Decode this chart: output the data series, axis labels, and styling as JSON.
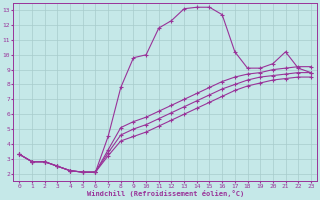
{
  "xlabel": "Windchill (Refroidissement éolien,°C)",
  "xlim": [
    -0.5,
    23.5
  ],
  "ylim": [
    1.5,
    13.5
  ],
  "xticks": [
    0,
    1,
    2,
    3,
    4,
    5,
    6,
    7,
    8,
    9,
    10,
    11,
    12,
    13,
    14,
    15,
    16,
    17,
    18,
    19,
    20,
    21,
    22,
    23
  ],
  "yticks": [
    2,
    3,
    4,
    5,
    6,
    7,
    8,
    9,
    10,
    11,
    12,
    13
  ],
  "background_color": "#c5e8e8",
  "grid_color": "#a8cccc",
  "line_color": "#993399",
  "lines": [
    {
      "x": [
        0,
        1,
        2,
        3,
        4,
        5,
        6,
        7,
        8,
        9,
        10,
        11,
        12,
        13,
        14,
        15,
        16,
        17,
        18,
        19,
        20,
        21,
        22,
        23
      ],
      "y": [
        3.3,
        2.8,
        2.8,
        2.5,
        2.2,
        2.1,
        2.1,
        4.5,
        7.8,
        9.8,
        10.0,
        11.8,
        12.3,
        13.1,
        13.2,
        13.2,
        12.7,
        10.2,
        9.1,
        9.1,
        9.4,
        10.2,
        9.1,
        8.8
      ]
    },
    {
      "x": [
        0,
        1,
        2,
        3,
        4,
        5,
        6,
        7,
        8,
        9,
        10,
        11,
        12,
        13,
        14,
        15,
        16,
        17,
        18,
        19,
        20,
        21,
        22,
        23
      ],
      "y": [
        3.3,
        2.8,
        2.8,
        2.5,
        2.2,
        2.1,
        2.1,
        3.6,
        5.1,
        5.5,
        5.8,
        6.2,
        6.6,
        7.0,
        7.4,
        7.8,
        8.2,
        8.5,
        8.7,
        8.8,
        9.0,
        9.1,
        9.2,
        9.2
      ]
    },
    {
      "x": [
        0,
        1,
        2,
        3,
        4,
        5,
        6,
        7,
        8,
        9,
        10,
        11,
        12,
        13,
        14,
        15,
        16,
        17,
        18,
        19,
        20,
        21,
        22,
        23
      ],
      "y": [
        3.3,
        2.8,
        2.8,
        2.5,
        2.2,
        2.1,
        2.1,
        3.4,
        4.6,
        5.0,
        5.3,
        5.7,
        6.1,
        6.5,
        6.9,
        7.3,
        7.7,
        8.0,
        8.3,
        8.5,
        8.6,
        8.7,
        8.8,
        8.8
      ]
    },
    {
      "x": [
        0,
        1,
        2,
        3,
        4,
        5,
        6,
        7,
        8,
        9,
        10,
        11,
        12,
        13,
        14,
        15,
        16,
        17,
        18,
        19,
        20,
        21,
        22,
        23
      ],
      "y": [
        3.3,
        2.8,
        2.8,
        2.5,
        2.2,
        2.1,
        2.1,
        3.2,
        4.2,
        4.5,
        4.8,
        5.2,
        5.6,
        6.0,
        6.4,
        6.8,
        7.2,
        7.6,
        7.9,
        8.1,
        8.3,
        8.4,
        8.5,
        8.5
      ]
    }
  ]
}
